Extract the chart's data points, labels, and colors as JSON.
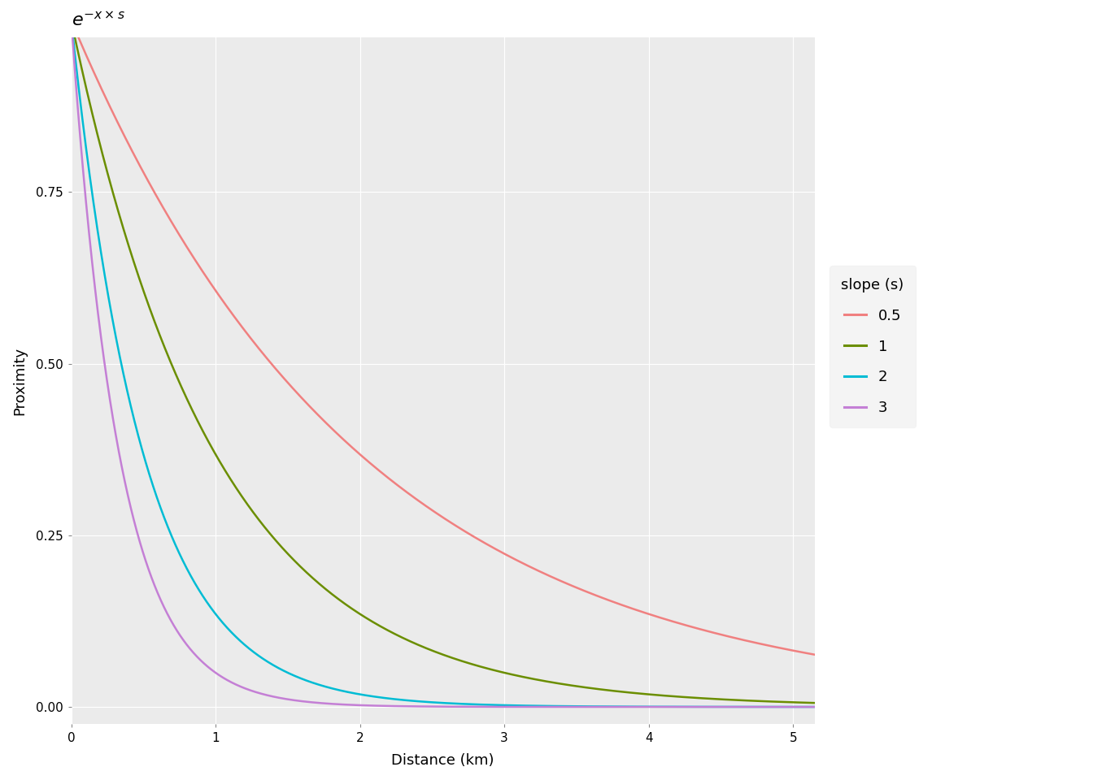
{
  "xlabel": "Distance (km)",
  "ylabel": "Proximity",
  "xlim": [
    0,
    5.15
  ],
  "ylim": [
    -0.025,
    0.975
  ],
  "slopes": [
    0.5,
    1,
    2,
    3
  ],
  "slope_labels": [
    "0.5",
    "1",
    "2",
    "3"
  ],
  "colors": [
    "#F08080",
    "#6B8E00",
    "#00BCD4",
    "#C47FD5"
  ],
  "legend_title": "slope (s)",
  "background_color": "#EBEBEB",
  "grid_color": "#FFFFFF",
  "line_width": 1.8,
  "x_ticks": [
    0,
    1,
    2,
    3,
    4,
    5
  ],
  "y_ticks": [
    0.0,
    0.25,
    0.5,
    0.75
  ],
  "title_text": "$e^{-x \\times s}$",
  "title_fontsize": 16,
  "axis_fontsize": 13,
  "tick_fontsize": 11,
  "legend_fontsize": 13,
  "legend_title_fontsize": 13
}
